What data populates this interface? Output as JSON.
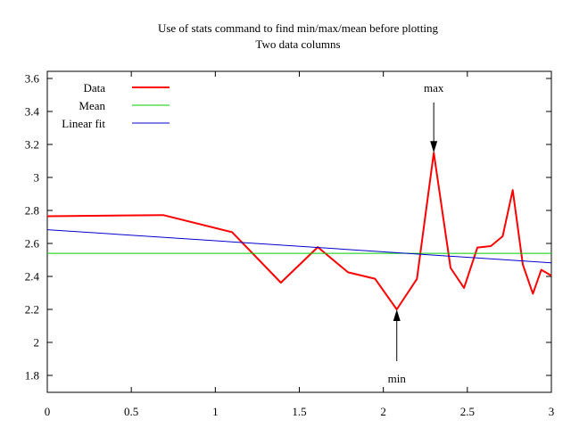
{
  "chart_data": {
    "type": "line",
    "title": "Use of stats command to find min/max/mean before plotting",
    "subtitle": "Two data columns",
    "xlabel": "",
    "ylabel": "",
    "xlim": [
      0,
      3
    ],
    "ylim": [
      1.7,
      3.65
    ],
    "grid": false,
    "legend_position": "top-left",
    "x_ticks": [
      0,
      0.5,
      1,
      1.5,
      2,
      2.5,
      3
    ],
    "x_tick_labels": [
      "0",
      "0.5",
      "1",
      "1.5",
      "2",
      "2.5",
      "3"
    ],
    "y_ticks": [
      1.8,
      2,
      2.2,
      2.4,
      2.6,
      2.8,
      3,
      3.2,
      3.4,
      3.6
    ],
    "y_tick_labels": [
      "1.8",
      "2",
      "2.2",
      "2.4",
      "2.6",
      "2.8",
      "3",
      "3.2",
      "3.4",
      "3.6"
    ],
    "series": [
      {
        "name": "Data",
        "color": "#ff0000",
        "x": [
          0,
          0.69,
          1.1,
          1.39,
          1.61,
          1.79,
          1.95,
          2.08,
          2.2,
          2.3,
          2.4,
          2.48,
          2.56,
          2.64,
          2.71,
          2.77,
          2.83,
          2.89,
          2.94,
          3.0
        ],
        "y": [
          2.765,
          2.772,
          2.668,
          2.362,
          2.578,
          2.425,
          2.386,
          2.2,
          2.385,
          3.15,
          2.452,
          2.33,
          2.575,
          2.584,
          2.643,
          2.923,
          2.472,
          2.295,
          2.44,
          2.405
        ]
      },
      {
        "name": "Mean",
        "color": "#00cc00",
        "x": [
          0,
          3
        ],
        "y": [
          2.54,
          2.54
        ]
      },
      {
        "name": "Linear fit",
        "color": "#0000cc",
        "x": [
          0,
          3
        ],
        "y": [
          2.683,
          2.482
        ]
      }
    ],
    "annotations": [
      {
        "label": "max",
        "x": 2.3,
        "y": 3.15,
        "direction": "down"
      },
      {
        "label": "min",
        "x": 2.08,
        "y": 2.2,
        "direction": "up"
      }
    ]
  }
}
